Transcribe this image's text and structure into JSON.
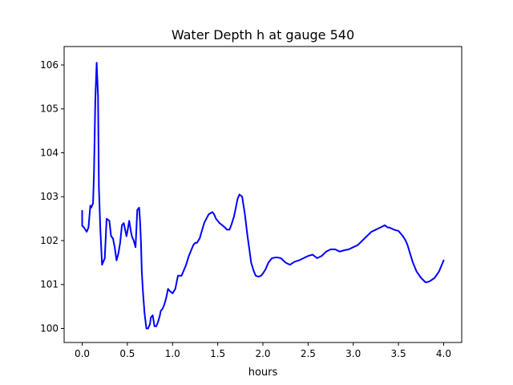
{
  "chart_data": {
    "type": "line",
    "title": "Water Depth h at gauge 540",
    "xlabel": "hours",
    "ylabel": "",
    "xlim": [
      -0.2,
      4.2
    ],
    "ylim": [
      99.68,
      106.42
    ],
    "xticks": [
      0.0,
      0.5,
      1.0,
      1.5,
      2.0,
      2.5,
      3.0,
      3.5,
      4.0
    ],
    "xtick_labels": [
      "0.0",
      "0.5",
      "1.0",
      "1.5",
      "2.0",
      "2.5",
      "3.0",
      "3.5",
      "4.0"
    ],
    "yticks": [
      100,
      101,
      102,
      103,
      104,
      105,
      106
    ],
    "ytick_labels": [
      "100",
      "101",
      "102",
      "103",
      "104",
      "105",
      "106"
    ],
    "grid": false,
    "series": [
      {
        "color": "#0000ff",
        "x": [
          0.0,
          0.0,
          0.02,
          0.05,
          0.07,
          0.09,
          0.1,
          0.12,
          0.13,
          0.145,
          0.16,
          0.175,
          0.185,
          0.2,
          0.22,
          0.25,
          0.27,
          0.3,
          0.32,
          0.34,
          0.36,
          0.38,
          0.4,
          0.42,
          0.44,
          0.46,
          0.49,
          0.5,
          0.52,
          0.54,
          0.55,
          0.57,
          0.59,
          0.61,
          0.63,
          0.64,
          0.65,
          0.66,
          0.67,
          0.69,
          0.71,
          0.73,
          0.75,
          0.76,
          0.78,
          0.8,
          0.82,
          0.84,
          0.86,
          0.87,
          0.89,
          0.91,
          0.93,
          0.95,
          0.97,
          1.0,
          1.03,
          1.06,
          1.1,
          1.12,
          1.15,
          1.18,
          1.2,
          1.23,
          1.25,
          1.27,
          1.3,
          1.35,
          1.4,
          1.44,
          1.46,
          1.48,
          1.5,
          1.52,
          1.55,
          1.58,
          1.6,
          1.63,
          1.65,
          1.68,
          1.7,
          1.72,
          1.74,
          1.77,
          1.8,
          1.83,
          1.85,
          1.87,
          1.9,
          1.92,
          1.95,
          1.98,
          2.0,
          2.03,
          2.06,
          2.1,
          2.15,
          2.2,
          2.25,
          2.3,
          2.35,
          2.4,
          2.45,
          2.5,
          2.55,
          2.6,
          2.65,
          2.7,
          2.75,
          2.8,
          2.85,
          2.9,
          2.95,
          3.0,
          3.05,
          3.1,
          3.15,
          3.2,
          3.25,
          3.3,
          3.35,
          3.38,
          3.4,
          3.45,
          3.5,
          3.55,
          3.58,
          3.6,
          3.63,
          3.66,
          3.7,
          3.75,
          3.8,
          3.83,
          3.85,
          3.9,
          3.95,
          4.0
        ],
        "y": [
          102.68,
          102.34,
          102.3,
          102.2,
          102.3,
          102.8,
          102.75,
          102.85,
          103.5,
          105.2,
          106.05,
          105.3,
          103.2,
          102.3,
          101.45,
          101.6,
          102.5,
          102.45,
          102.1,
          102.05,
          101.85,
          101.55,
          101.7,
          101.95,
          102.35,
          102.4,
          102.1,
          102.2,
          102.45,
          102.2,
          102.1,
          102.0,
          101.85,
          102.7,
          102.75,
          102.45,
          102.0,
          101.3,
          100.9,
          100.35,
          100.0,
          100.0,
          100.1,
          100.25,
          100.3,
          100.05,
          100.05,
          100.15,
          100.3,
          100.4,
          100.45,
          100.55,
          100.7,
          100.9,
          100.85,
          100.8,
          100.9,
          101.2,
          101.2,
          101.3,
          101.45,
          101.65,
          101.75,
          101.9,
          101.95,
          101.95,
          102.05,
          102.4,
          102.6,
          102.65,
          102.6,
          102.5,
          102.45,
          102.4,
          102.35,
          102.3,
          102.25,
          102.25,
          102.35,
          102.55,
          102.75,
          102.95,
          103.05,
          103.0,
          102.6,
          102.1,
          101.8,
          101.5,
          101.3,
          101.2,
          101.18,
          101.2,
          101.25,
          101.35,
          101.5,
          101.6,
          101.62,
          101.6,
          101.5,
          101.45,
          101.52,
          101.55,
          101.6,
          101.65,
          101.68,
          101.6,
          101.65,
          101.75,
          101.8,
          101.8,
          101.75,
          101.78,
          101.8,
          101.85,
          101.9,
          102.0,
          102.1,
          102.2,
          102.25,
          102.3,
          102.35,
          102.3,
          102.3,
          102.25,
          102.22,
          102.1,
          102.0,
          101.9,
          101.7,
          101.5,
          101.3,
          101.15,
          101.05,
          101.06,
          101.08,
          101.15,
          101.3,
          101.55
        ]
      }
    ]
  }
}
